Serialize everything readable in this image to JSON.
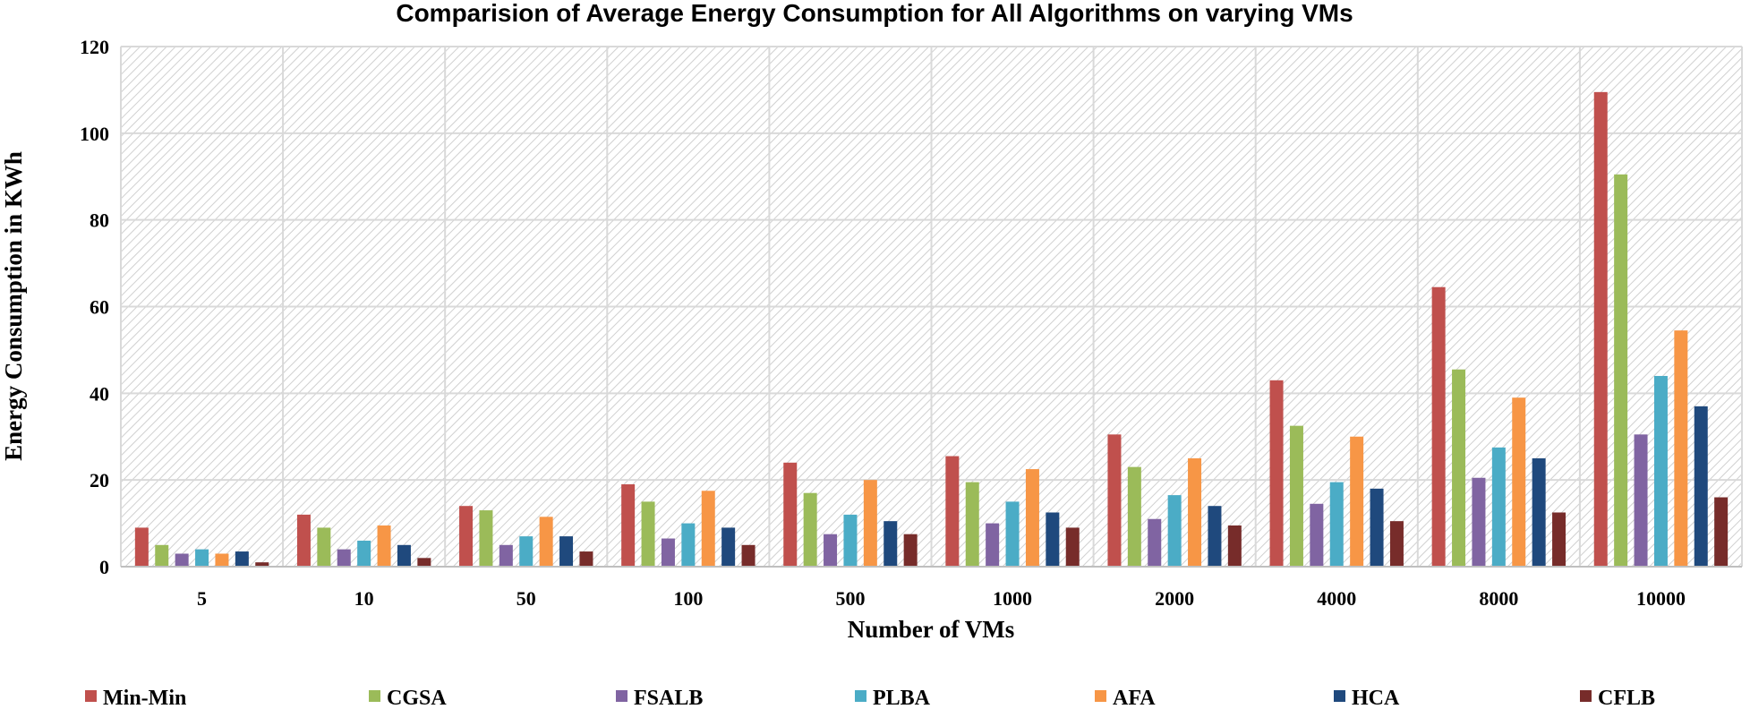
{
  "chart_data": {
    "type": "bar",
    "title": "Comparision of Average Energy Consumption for All Algorithms on varying  VMs",
    "xlabel": "Number of VMs",
    "ylabel": "Energy Consumption in KWh",
    "ylim": [
      0,
      120
    ],
    "yticks": [
      0,
      20,
      40,
      60,
      80,
      100,
      120
    ],
    "grid": true,
    "legend_position": "bottom",
    "categories": [
      "5",
      "10",
      "50",
      "100",
      "500",
      "1000",
      "2000",
      "4000",
      "8000",
      "10000"
    ],
    "series": [
      {
        "name": "Min-Min",
        "color": "#C0504D",
        "values": [
          9,
          12,
          14,
          19,
          24,
          25.5,
          30.5,
          43,
          64.5,
          109.5
        ]
      },
      {
        "name": "CGSA",
        "color": "#9BBB59",
        "values": [
          5,
          9,
          13,
          15,
          17,
          19.5,
          23,
          32.5,
          45.5,
          90.5
        ]
      },
      {
        "name": "FSALB",
        "color": "#8064A2",
        "values": [
          3,
          4,
          5,
          6.5,
          7.5,
          10,
          11,
          14.5,
          20.5,
          30.5
        ]
      },
      {
        "name": "PLBA",
        "color": "#4BACC6",
        "values": [
          4,
          6,
          7,
          10,
          12,
          15,
          16.5,
          19.5,
          27.5,
          44
        ]
      },
      {
        "name": "AFA",
        "color": "#F79646",
        "values": [
          3,
          9.5,
          11.5,
          17.5,
          20,
          22.5,
          25,
          30,
          39,
          54.5
        ]
      },
      {
        "name": "HCA",
        "color": "#1F497D",
        "values": [
          3.5,
          5,
          7,
          9,
          10.5,
          12.5,
          14,
          18,
          25,
          37
        ]
      },
      {
        "name": "CFLB",
        "color": "#772C2A",
        "values": [
          1,
          2,
          3.5,
          5,
          7.5,
          9,
          9.5,
          10.5,
          12.5,
          16
        ]
      }
    ]
  }
}
